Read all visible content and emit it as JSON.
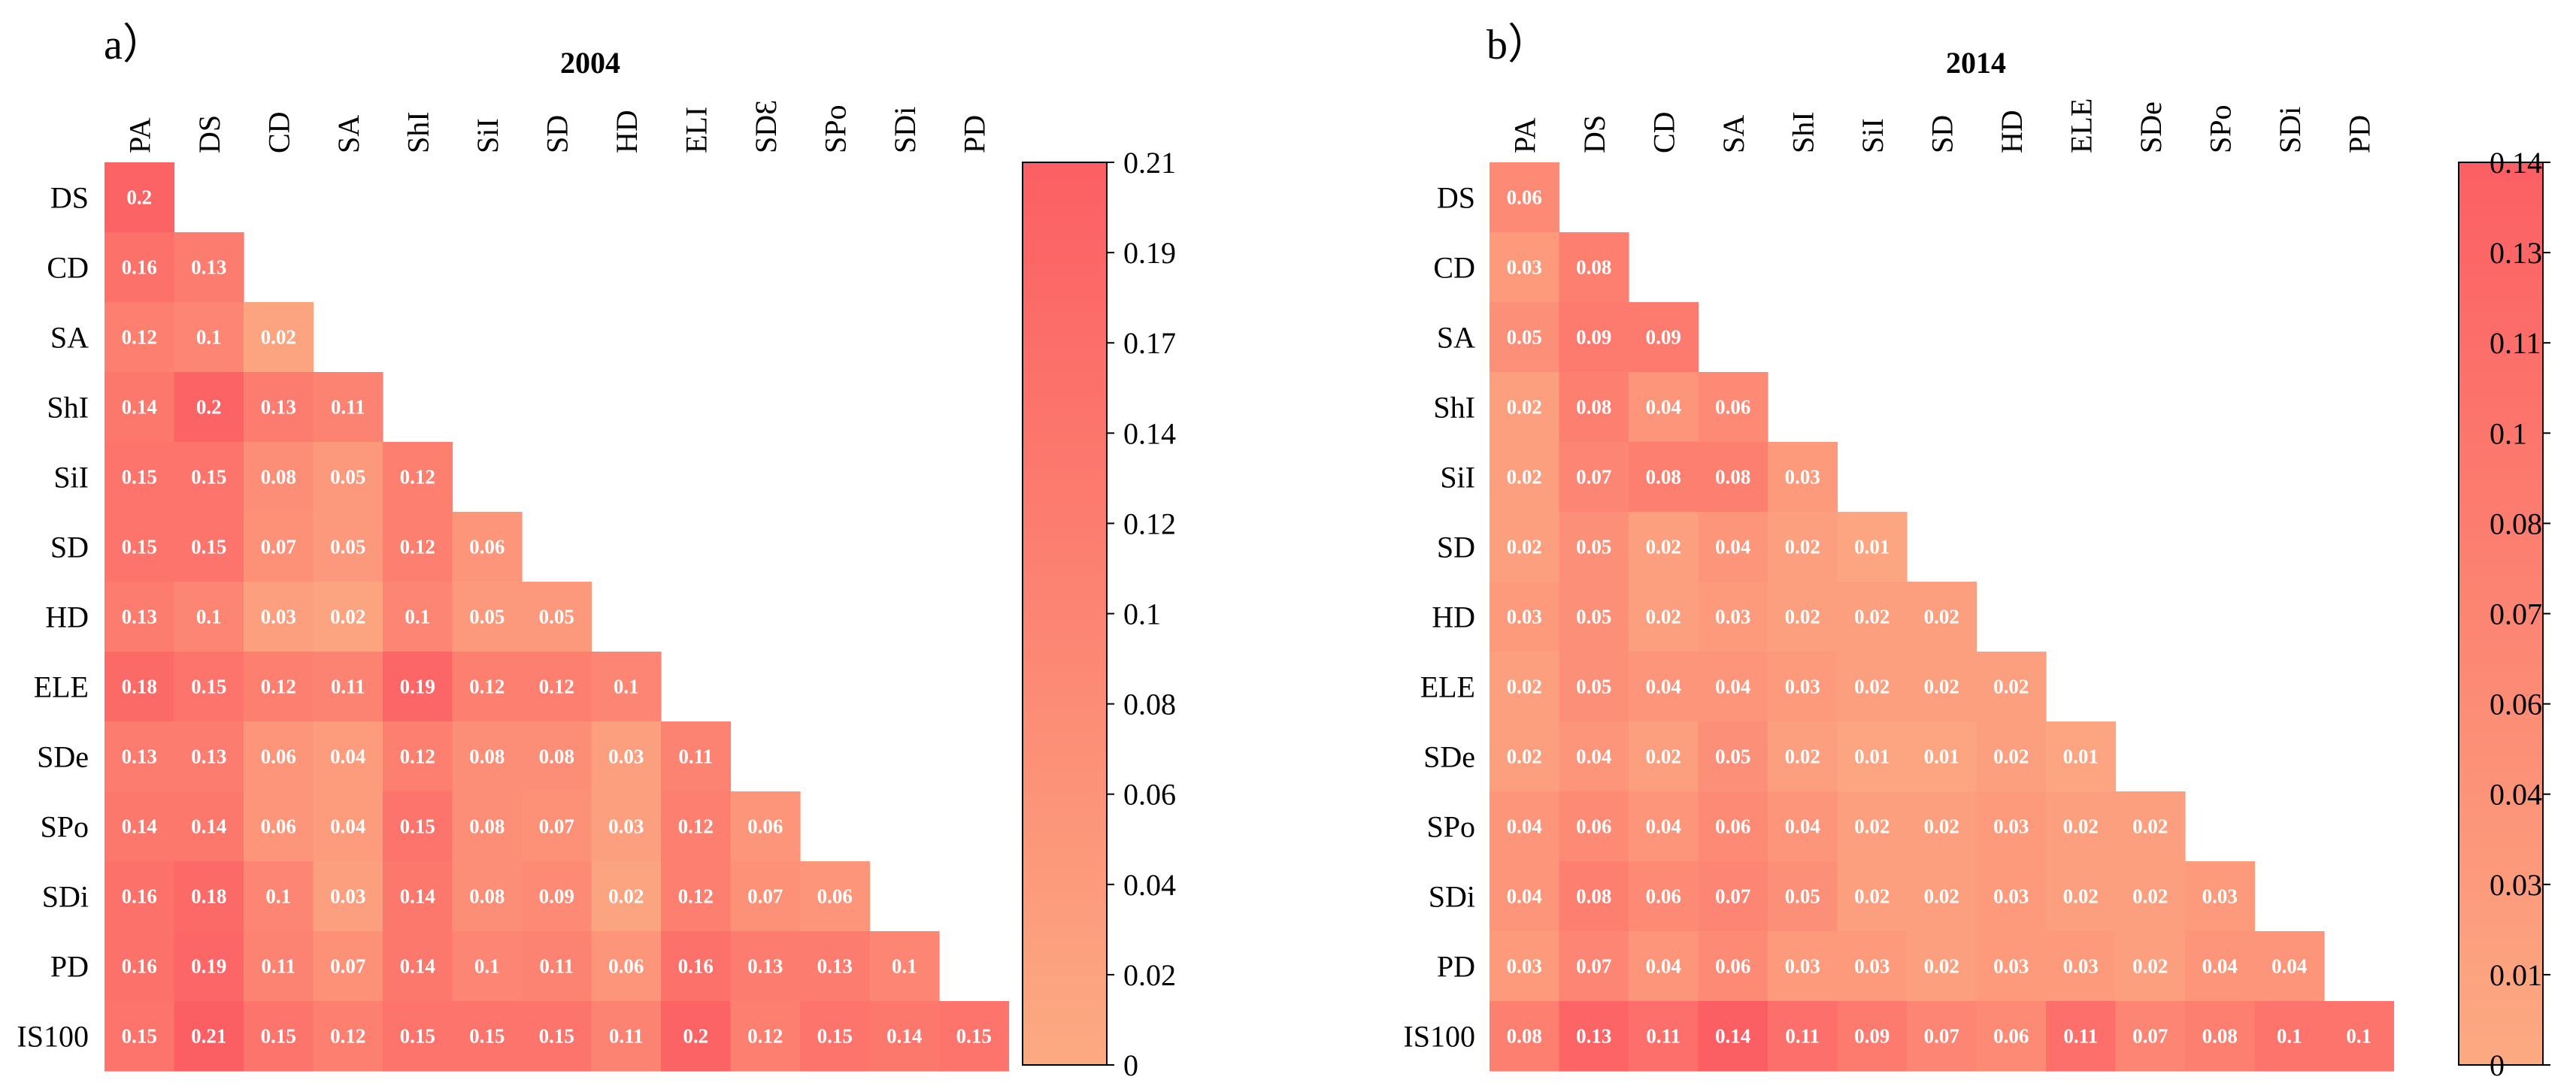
{
  "figure": {
    "panels_label": "correlation heatmaps 2004 and 2014"
  },
  "chart_data": [
    {
      "type": "heatmap",
      "panel_label": "a）",
      "title": "2004",
      "columns": [
        "PA",
        "DS",
        "CD",
        "SA",
        "ShI",
        "SiI",
        "SD",
        "HD",
        "ELI",
        "SDƐ",
        "SPo",
        "SDi",
        "PD"
      ],
      "rows": [
        "DS",
        "CD",
        "SA",
        "ShI",
        "SiI",
        "SD",
        "HD",
        "ELE",
        "SDe",
        "SPo",
        "SDi",
        "PD",
        "IS100"
      ],
      "values": [
        [
          "0.2"
        ],
        [
          "0.16",
          "0.13"
        ],
        [
          "0.12",
          "0.1",
          "0.02"
        ],
        [
          "0.14",
          "0.2",
          "0.13",
          "0.11"
        ],
        [
          "0.15",
          "0.15",
          "0.08",
          "0.05",
          "0.12"
        ],
        [
          "0.15",
          "0.15",
          "0.07",
          "0.05",
          "0.12",
          "0.06"
        ],
        [
          "0.13",
          "0.1",
          "0.03",
          "0.02",
          "0.1",
          "0.05",
          "0.05"
        ],
        [
          "0.18",
          "0.15",
          "0.12",
          "0.11",
          "0.19",
          "0.12",
          "0.12",
          "0.1"
        ],
        [
          "0.13",
          "0.13",
          "0.06",
          "0.04",
          "0.12",
          "0.08",
          "0.08",
          "0.03",
          "0.11"
        ],
        [
          "0.14",
          "0.14",
          "0.06",
          "0.04",
          "0.15",
          "0.08",
          "0.07",
          "0.03",
          "0.12",
          "0.06"
        ],
        [
          "0.16",
          "0.18",
          "0.1",
          "0.03",
          "0.14",
          "0.08",
          "0.09",
          "0.02",
          "0.12",
          "0.07",
          "0.06"
        ],
        [
          "0.16",
          "0.19",
          "0.11",
          "0.07",
          "0.14",
          "0.1",
          "0.11",
          "0.06",
          "0.16",
          "0.13",
          "0.13",
          "0.1"
        ],
        [
          "0.15",
          "0.21",
          "0.15",
          "0.12",
          "0.15",
          "0.15",
          "0.15",
          "0.11",
          "0.2",
          "0.12",
          "0.15",
          "0.14",
          "0.15"
        ]
      ],
      "colorbar": {
        "min": 0,
        "max": 0.21,
        "ticks": [
          "0.21",
          "0.19",
          "0.17",
          "0.14",
          "0.12",
          "0.1",
          "0.08",
          "0.06",
          "0.04",
          "0.02",
          "0"
        ],
        "low_color": "#fcaa82",
        "high_color": "#fc5f63"
      }
    },
    {
      "type": "heatmap",
      "panel_label": "b）",
      "title": "2014",
      "columns": [
        "PA",
        "DS",
        "CD",
        "SA",
        "ShI",
        "SiI",
        "SD",
        "HD",
        "ELE",
        "SDe",
        "SPo",
        "SDi",
        "PD"
      ],
      "rows": [
        "DS",
        "CD",
        "SA",
        "ShI",
        "SiI",
        "SD",
        "HD",
        "ELE",
        "SDe",
        "SPo",
        "SDi",
        "PD",
        "IS100"
      ],
      "values": [
        [
          "0.06"
        ],
        [
          "0.03",
          "0.08"
        ],
        [
          "0.05",
          "0.09",
          "0.09"
        ],
        [
          "0.02",
          "0.08",
          "0.04",
          "0.06"
        ],
        [
          "0.02",
          "0.07",
          "0.08",
          "0.08",
          "0.03"
        ],
        [
          "0.02",
          "0.05",
          "0.02",
          "0.04",
          "0.02",
          "0.01"
        ],
        [
          "0.03",
          "0.05",
          "0.02",
          "0.03",
          "0.02",
          "0.02",
          "0.02"
        ],
        [
          "0.02",
          "0.05",
          "0.04",
          "0.04",
          "0.03",
          "0.02",
          "0.02",
          "0.02"
        ],
        [
          "0.02",
          "0.04",
          "0.02",
          "0.05",
          "0.02",
          "0.01",
          "0.01",
          "0.02",
          "0.01"
        ],
        [
          "0.04",
          "0.06",
          "0.04",
          "0.06",
          "0.04",
          "0.02",
          "0.02",
          "0.03",
          "0.02",
          "0.02"
        ],
        [
          "0.04",
          "0.08",
          "0.06",
          "0.07",
          "0.05",
          "0.02",
          "0.02",
          "0.03",
          "0.02",
          "0.02",
          "0.03"
        ],
        [
          "0.03",
          "0.07",
          "0.04",
          "0.06",
          "0.03",
          "0.03",
          "0.02",
          "0.03",
          "0.03",
          "0.02",
          "0.04",
          "0.04"
        ],
        [
          "0.08",
          "0.13",
          "0.11",
          "0.14",
          "0.11",
          "0.09",
          "0.07",
          "0.06",
          "0.11",
          "0.07",
          "0.08",
          "0.1",
          "0.1"
        ]
      ],
      "colorbar": {
        "min": 0,
        "max": 0.14,
        "ticks": [
          "0.14",
          "0.13",
          "0.11",
          "0.1",
          "0.08",
          "0.07",
          "0.06",
          "0.04",
          "0.03",
          "0.01",
          "0"
        ],
        "low_color": "#fcaa82",
        "high_color": "#fc5f63"
      }
    }
  ]
}
